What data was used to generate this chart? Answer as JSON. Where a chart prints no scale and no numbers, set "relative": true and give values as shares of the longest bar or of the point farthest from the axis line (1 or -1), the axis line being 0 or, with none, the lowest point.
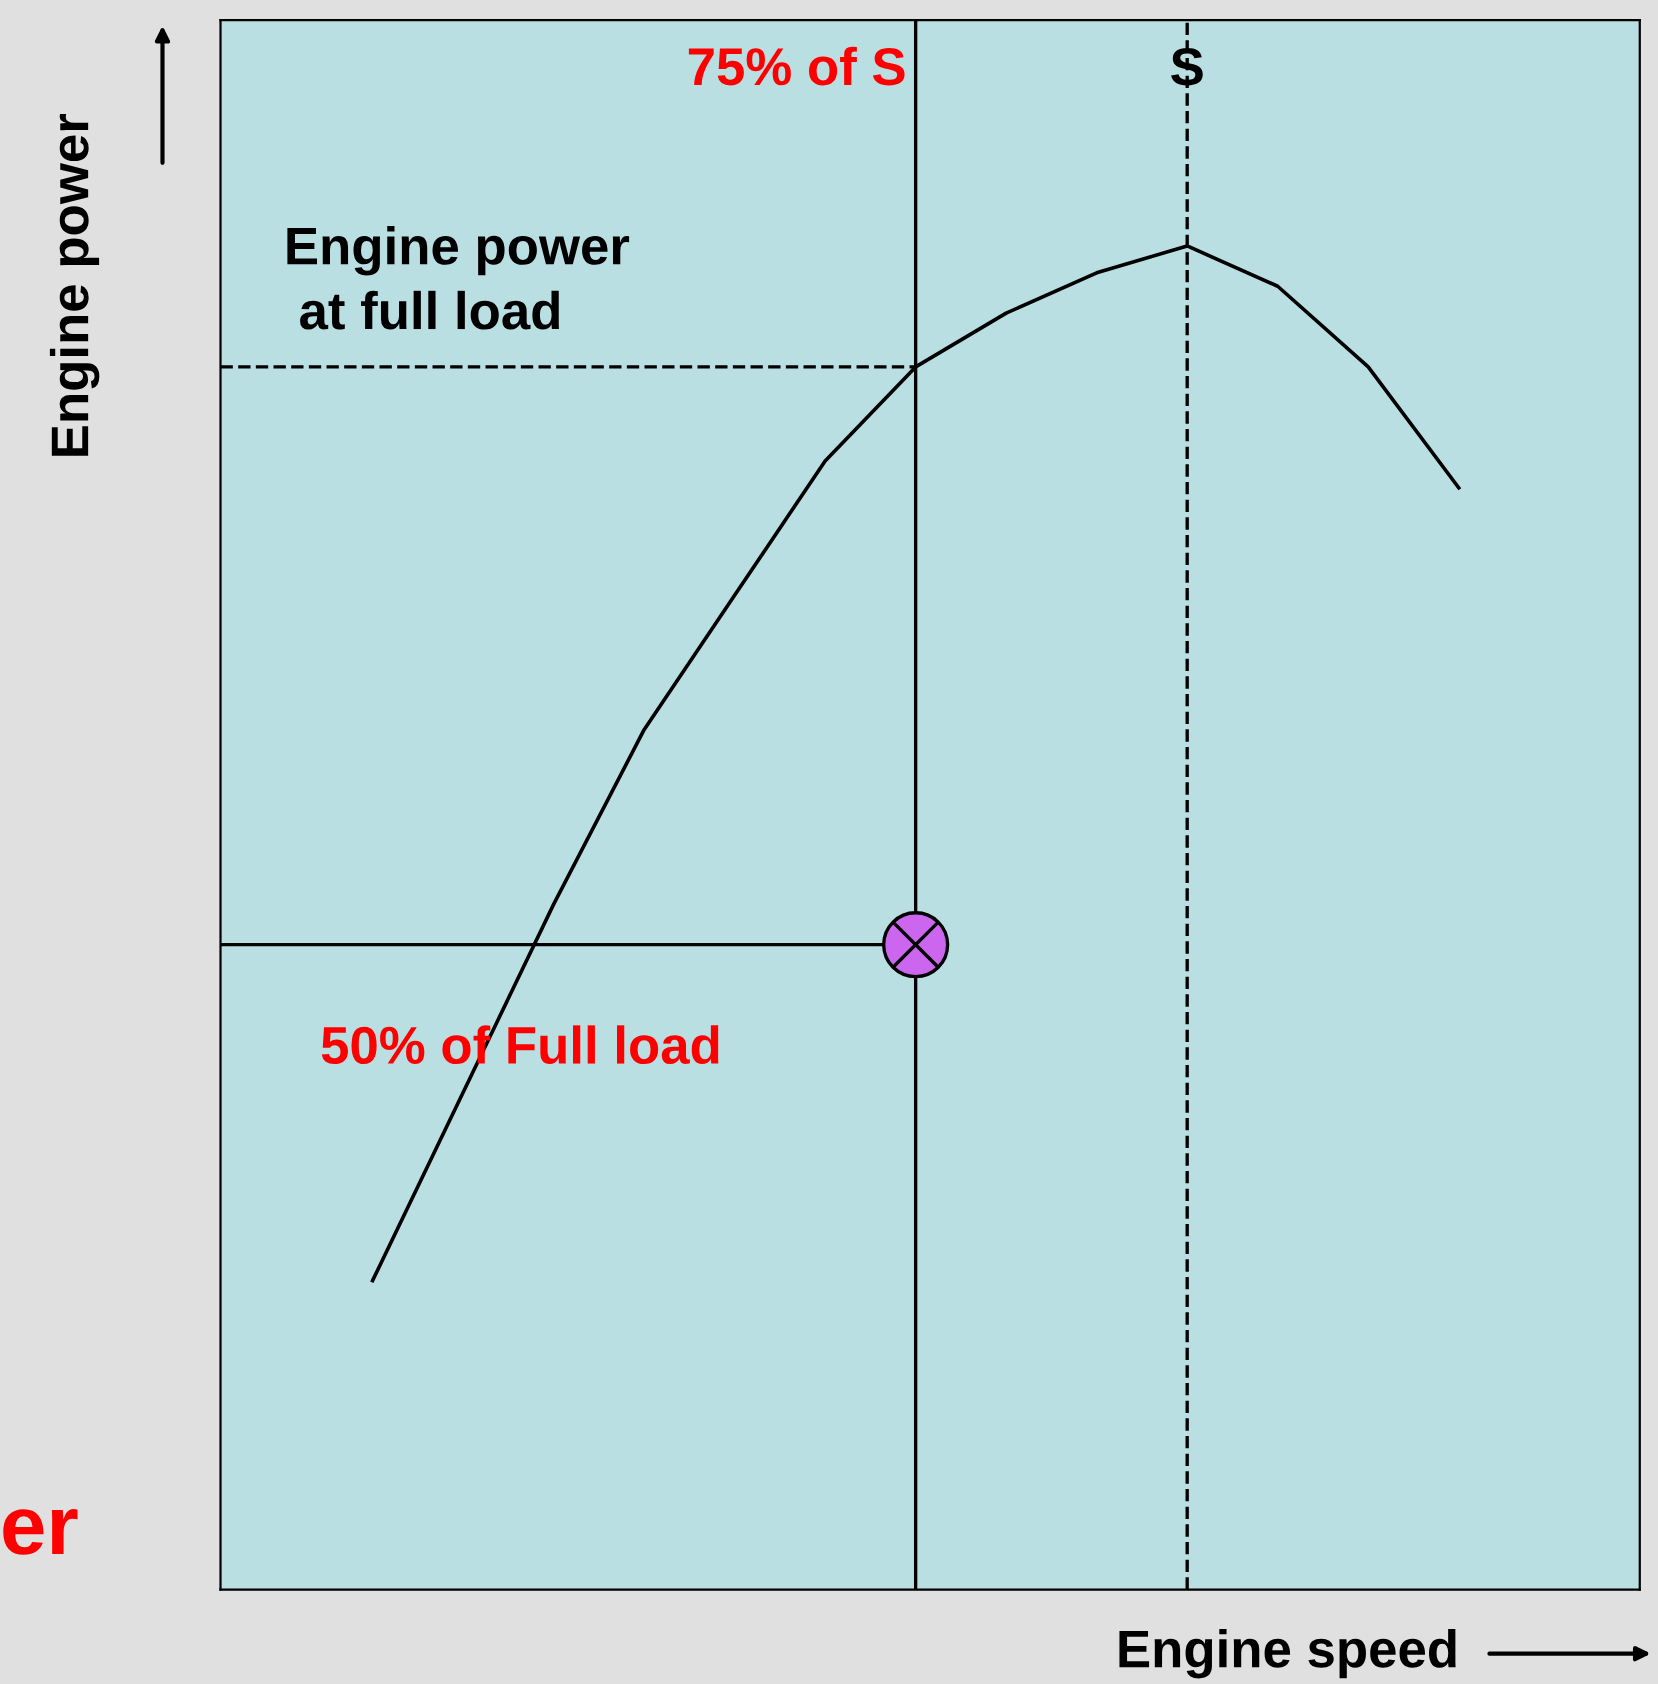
{
  "chart_data": {
    "type": "line",
    "relative": true,
    "xlabel": "Engine speed",
    "ylabel": "Engine power",
    "categories": [
      null,
      null,
      null,
      null,
      null,
      null,
      null,
      null,
      null,
      null,
      null,
      null,
      null
    ],
    "series": [
      {
        "color": "#000000",
        "values": [
          0.23,
          0.37,
          0.51,
          0.64,
          0.74,
          0.84,
          0.91,
          0.95,
          0.98,
          1,
          0.97,
          0.91,
          0.82
        ]
      }
    ],
    "ref_lines": [
      {
        "axis": "y",
        "value": 0.91,
        "label": "Engine power\n at full load",
        "line_style": "dashed"
      },
      {
        "axis": "y",
        "value": 0.48,
        "label": "50% of Full load",
        "line_style": "solid"
      }
    ],
    "annotations": [
      "75% of S",
      "S",
      "er"
    ],
    "grid": false,
    "legend": false
  }
}
